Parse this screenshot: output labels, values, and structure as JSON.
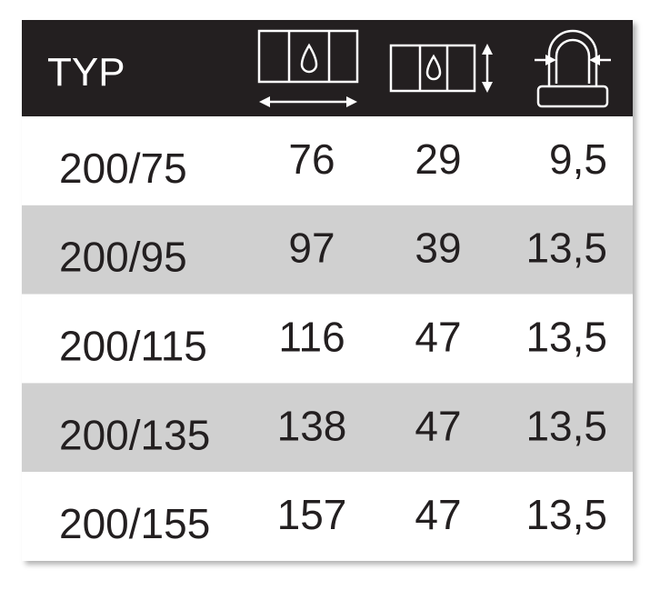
{
  "header": {
    "title": "TYP"
  },
  "table": {
    "rows": [
      [
        "200/75",
        "76",
        "29",
        "9,5"
      ],
      [
        "200/95",
        "97",
        "39",
        "13,5"
      ],
      [
        "200/115",
        "116",
        "47",
        "13,5"
      ],
      [
        "200/135",
        "138",
        "47",
        "13,5"
      ],
      [
        "200/155",
        "157",
        "47",
        "13,5"
      ]
    ]
  }
}
